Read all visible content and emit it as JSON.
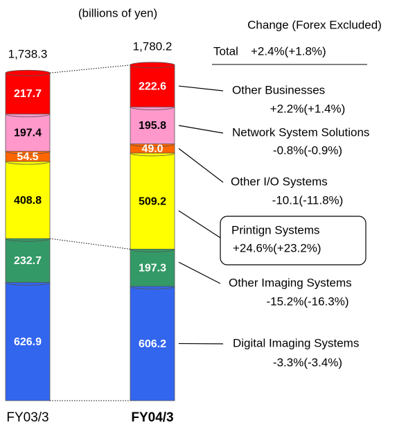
{
  "chart_data": {
    "type": "bar",
    "stacked": true,
    "subtitle": "(billions of yen)",
    "change_header": "Change (Forex Excluded)",
    "categories": [
      "FY03/3",
      "FY04/3"
    ],
    "total": {
      "label": "Total",
      "change": "+2.4%(+1.8%)",
      "values": [
        1738.3,
        1780.2
      ],
      "value_labels": [
        "1,738.3",
        "1,780.2"
      ]
    },
    "series": [
      {
        "name": "Digital Imaging Systems",
        "color": "#3366ee",
        "label_color": "#ffffff",
        "values": [
          626.9,
          606.2
        ],
        "value_labels": [
          "626.9",
          "606.2"
        ],
        "change": "-3.3%(-3.4%)"
      },
      {
        "name": "Other Imaging Systems",
        "color": "#339966",
        "label_color": "#ffffff",
        "values": [
          232.7,
          197.3
        ],
        "value_labels": [
          "232.7",
          "197.3"
        ],
        "change": "-15.2%(-16.3%)"
      },
      {
        "name": "Printign Systems",
        "color": "#ffff00",
        "label_color": "#000000",
        "values": [
          408.8,
          509.2
        ],
        "value_labels": [
          "408.8",
          "509.2"
        ],
        "change": "+24.6%(+23.2%)",
        "boxed": true
      },
      {
        "name": "Other I/O Systems",
        "color": "#ff6600",
        "label_color": "#ffffff",
        "values": [
          54.5,
          49.0
        ],
        "value_labels": [
          "54.5",
          "49.0"
        ],
        "change": "-10.1(-11.8%)"
      },
      {
        "name": "Network System Solutions",
        "color": "#ff99cc",
        "label_color": "#000000",
        "values": [
          197.4,
          195.8
        ],
        "value_labels": [
          "197.4",
          "195.8"
        ],
        "change": "-0.8%(-0.9%)"
      },
      {
        "name": "Other Businesses",
        "color": "#ff0000",
        "label_color": "#ffffff",
        "values": [
          217.7,
          222.6
        ],
        "value_labels": [
          "217.7",
          "222.6"
        ],
        "change": "+2.2%(+1.4%)"
      }
    ]
  }
}
